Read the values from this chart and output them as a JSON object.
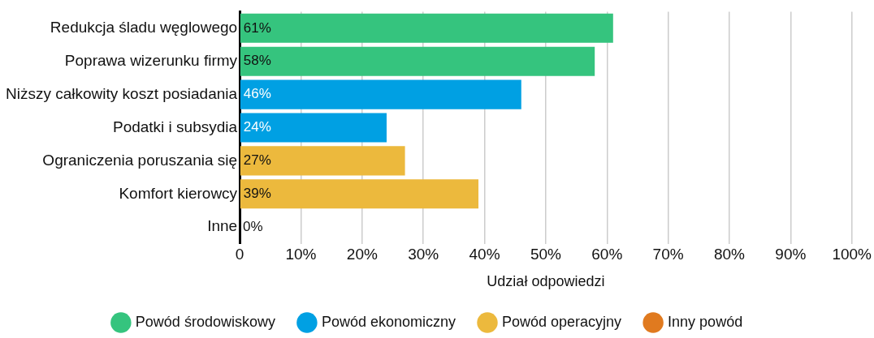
{
  "chart_data": {
    "type": "bar",
    "orientation": "horizontal",
    "categories": [
      "Redukcja śladu węglowego",
      "Poprawa wizerunku firmy",
      "Niższy całkowity koszt posiadania",
      "Podatki i subsydia",
      "Ograniczenia poruszania się",
      "Komfort kierowcy",
      "Inne"
    ],
    "series": [
      {
        "name": "Powód środowiskowy",
        "color": "#35c47e",
        "values": [
          61,
          58,
          null,
          null,
          null,
          null,
          null
        ]
      },
      {
        "name": "Powód ekonomiczny",
        "color": "#00a0e3",
        "values": [
          null,
          null,
          46,
          24,
          null,
          null,
          null
        ]
      },
      {
        "name": "Powód operacyjny",
        "color": "#ecb93d",
        "values": [
          null,
          null,
          null,
          null,
          27,
          39,
          null
        ]
      },
      {
        "name": "Inny powód",
        "color": "#e07a1f",
        "values": [
          null,
          null,
          null,
          null,
          null,
          null,
          0
        ]
      }
    ],
    "xlim": [
      0,
      100
    ],
    "xticks": [
      {
        "value": 0,
        "label": "0"
      },
      {
        "value": 10,
        "label": "10%"
      },
      {
        "value": 20,
        "label": "20%"
      },
      {
        "value": 30,
        "label": "30%"
      },
      {
        "value": 40,
        "label": "40%"
      },
      {
        "value": 50,
        "label": "50%"
      },
      {
        "value": 60,
        "label": "60%"
      },
      {
        "value": 70,
        "label": "70%"
      },
      {
        "value": 80,
        "label": "80%"
      },
      {
        "value": 90,
        "label": "90%"
      },
      {
        "value": 100,
        "label": "100%"
      }
    ],
    "value_labels": [
      "61%",
      "58%",
      "46%",
      "24%",
      "27%",
      "39%",
      "0%"
    ],
    "xlabel": "Udział odpowiedzi",
    "grid": "x",
    "legend": "bottom"
  }
}
